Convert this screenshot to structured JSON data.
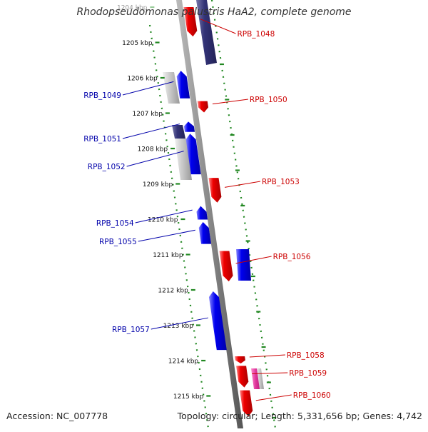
{
  "title": "Rhodopseudomonas palustris HaA2, complete genome",
  "footer": {
    "accession": "Accession: NC_007778",
    "summary": "Topology: circular; Length: 5,331,656 bp; Genes: 4,742"
  },
  "colors": {
    "forward": "#0000ee",
    "reverse": "#ee0000",
    "other_forward": "#333377",
    "other_neutral": "#bbbbbb",
    "pink": "#dd3399",
    "backbone": "#888888",
    "ticks": "#228822"
  },
  "kbp_marks": [
    {
      "label": "1204 kbp",
      "pos_kbp": 1204
    },
    {
      "label": "1205 kbp",
      "pos_kbp": 1205
    },
    {
      "label": "1206 kbp",
      "pos_kbp": 1206
    },
    {
      "label": "1207 kbp",
      "pos_kbp": 1207
    },
    {
      "label": "1208 kbp",
      "pos_kbp": 1208
    },
    {
      "label": "1209 kbp",
      "pos_kbp": 1209
    },
    {
      "label": "1210 kbp",
      "pos_kbp": 1210
    },
    {
      "label": "1211 kbp",
      "pos_kbp": 1211
    },
    {
      "label": "1212 kbp",
      "pos_kbp": 1212
    },
    {
      "label": "1213 kbp",
      "pos_kbp": 1213
    },
    {
      "label": "1214 kbp",
      "pos_kbp": 1214
    },
    {
      "label": "1215 kbp",
      "pos_kbp": 1215
    }
  ],
  "genes": [
    {
      "label": "RPB_1048",
      "strand": "reverse",
      "start_kbp": 1204.02,
      "end_kbp": 1204.85
    },
    {
      "label": "RPB_1049",
      "strand": "forward",
      "start_kbp": 1205.82,
      "end_kbp": 1206.6
    },
    {
      "label": "RPB_1050",
      "strand": "reverse",
      "start_kbp": 1206.68,
      "end_kbp": 1207.0
    },
    {
      "label": "RPB_1051",
      "strand": "forward",
      "start_kbp": 1207.26,
      "end_kbp": 1207.55
    },
    {
      "label": "RPB_1052",
      "strand": "forward",
      "start_kbp": 1207.6,
      "end_kbp": 1208.75
    },
    {
      "label": "RPB_1053",
      "strand": "reverse",
      "start_kbp": 1208.85,
      "end_kbp": 1209.55
    },
    {
      "label": "RPB_1054",
      "strand": "forward",
      "start_kbp": 1209.65,
      "end_kbp": 1210.03
    },
    {
      "label": "RPB_1055",
      "strand": "forward",
      "start_kbp": 1210.1,
      "end_kbp": 1210.72
    },
    {
      "label": "RPB_1056",
      "strand": "reverse",
      "start_kbp": 1210.92,
      "end_kbp": 1211.78
    },
    {
      "label": "RPB_1057",
      "strand": "forward",
      "start_kbp": 1212.06,
      "end_kbp": 1213.72
    },
    {
      "label": "RPB_1058",
      "strand": "reverse",
      "start_kbp": 1213.9,
      "end_kbp": 1214.1
    },
    {
      "label": "RPB_1059",
      "strand": "reverse",
      "start_kbp": 1214.17,
      "end_kbp": 1214.78
    },
    {
      "label": "RPB_1060",
      "strand": "reverse",
      "start_kbp": 1214.86,
      "end_kbp": 1215.6
    }
  ]
}
